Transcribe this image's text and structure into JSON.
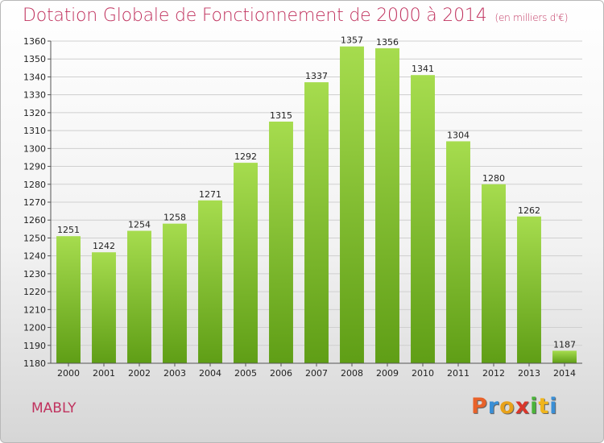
{
  "chart_data": {
    "type": "bar",
    "title": "Dotation Globale de Fonctionnement de 2000 à 2014",
    "unit_note": "(en milliers d'€)",
    "categories": [
      "2000",
      "2001",
      "2002",
      "2003",
      "2004",
      "2005",
      "2006",
      "2007",
      "2008",
      "2009",
      "2010",
      "2011",
      "2012",
      "2013",
      "2014"
    ],
    "values": [
      1251,
      1242,
      1254,
      1258,
      1271,
      1292,
      1315,
      1337,
      1357,
      1356,
      1341,
      1304,
      1280,
      1262,
      1187
    ],
    "ylim": [
      1180,
      1360
    ],
    "yticks": [
      1180,
      1190,
      1200,
      1210,
      1220,
      1230,
      1240,
      1250,
      1260,
      1270,
      1280,
      1290,
      1300,
      1310,
      1320,
      1330,
      1340,
      1350,
      1360
    ],
    "grid": true,
    "bar_color_top": "#a6dc4e",
    "bar_color_bottom": "#5f9e16"
  },
  "footer": {
    "city": "MABLY",
    "logo_letters": [
      "P",
      "r",
      "o",
      "x",
      "i",
      "t",
      "i"
    ],
    "logo_colors": [
      "#e8622a",
      "#3a8fd6",
      "#e8a21a",
      "#d9362b",
      "#4ab33a",
      "#f0b51c",
      "#3a8fd6"
    ]
  }
}
